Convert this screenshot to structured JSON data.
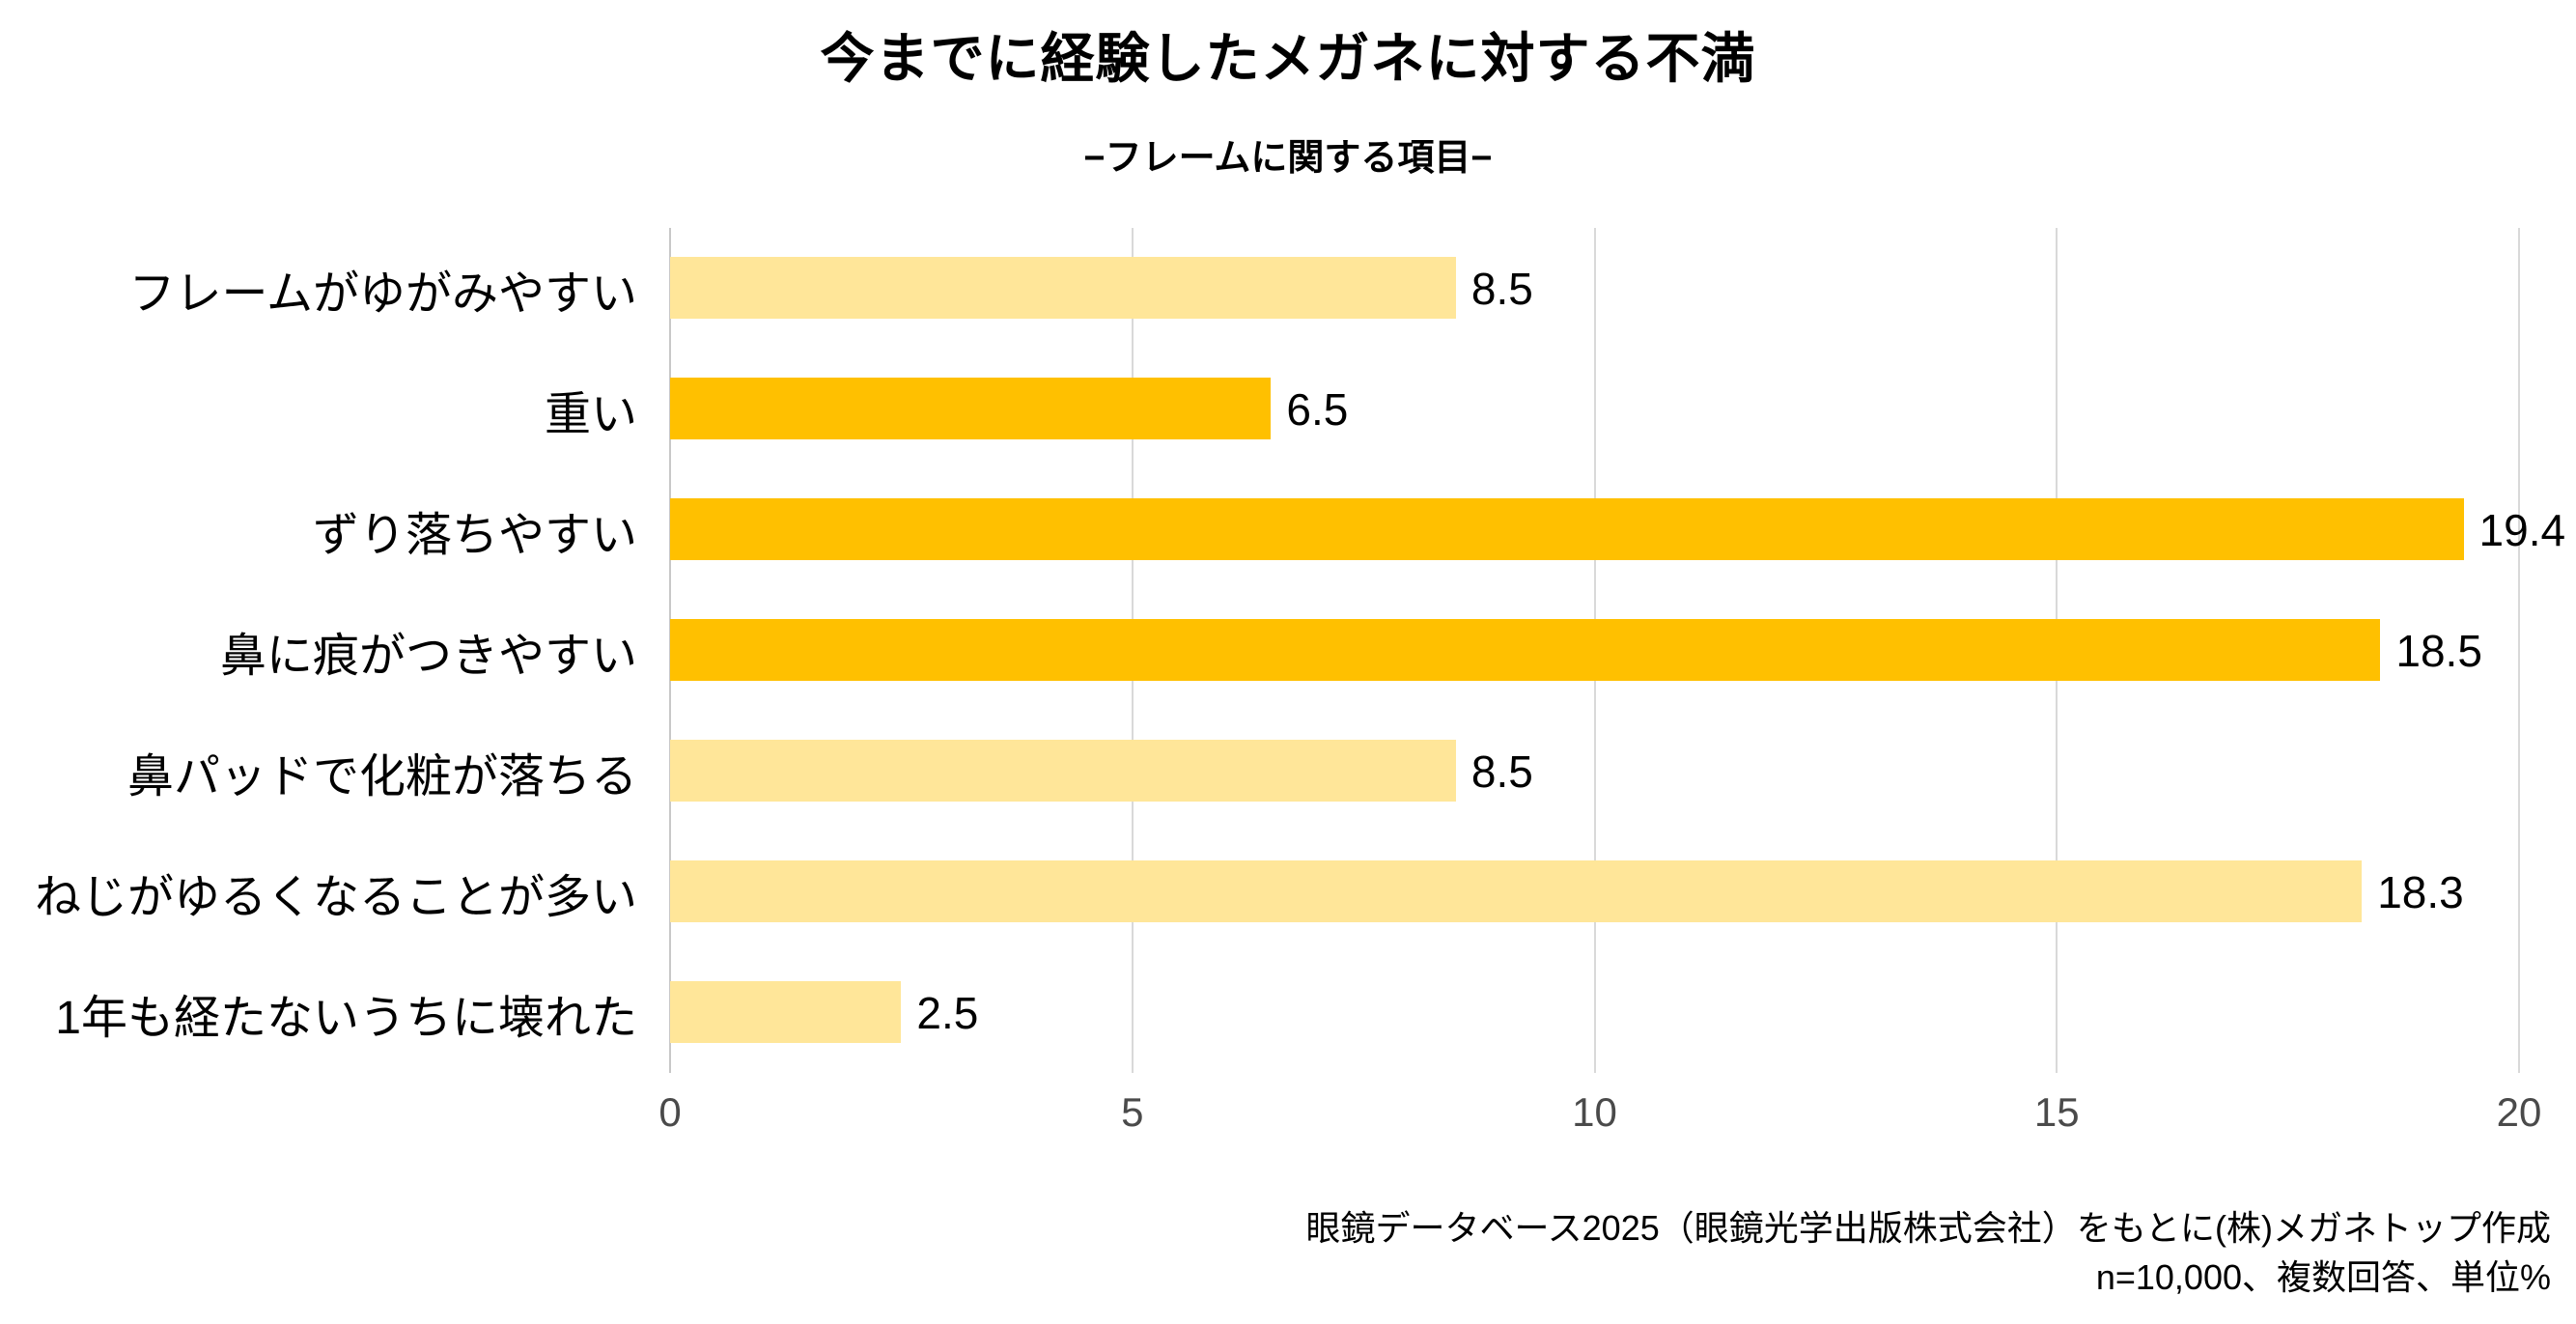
{
  "header": {
    "title": "今までに経験したメガネに対する不満",
    "subtitle": "−フレームに関する項目−"
  },
  "chart_data": {
    "type": "bar",
    "orientation": "horizontal",
    "title": "今までに経験したメガネに対する不満",
    "subtitle": "−フレームに関する項目−",
    "categories": [
      "フレームがゆがみやすい",
      "重い",
      "ずり落ちやすい",
      "鼻に痕がつきやすい",
      "鼻パッドで化粧が落ちる",
      "ねじがゆるくなることが多い",
      "1年も経たないうちに壊れた"
    ],
    "values": [
      8.5,
      6.5,
      19.4,
      18.5,
      8.5,
      18.3,
      2.5
    ],
    "value_labels": [
      "8.5",
      "6.5",
      "19.4",
      "18.5",
      "8.5",
      "18.3",
      "2.5"
    ],
    "bar_colors": [
      "#FFE699",
      "#FFC000",
      "#FFC000",
      "#FFC000",
      "#FFE699",
      "#FFE699",
      "#FFE699"
    ],
    "xlim": [
      0,
      20
    ],
    "xticks": [
      "0",
      "5",
      "10",
      "15",
      "20"
    ],
    "grid": "vertical-gridlines-only",
    "legend": "none",
    "unit": "%"
  },
  "footer": {
    "source_line": "眼鏡データベース2025（眼鏡光学出版株式会社）をもとに(株)メガネトップ作成",
    "note_line": "n=10,000、複数回答、単位%"
  },
  "colors": {
    "bar_light": "#FFE699",
    "bar_dark": "#FFC000",
    "gridline": "#D9D9D9",
    "axis_line": "#C8C8C8",
    "tick_text": "#4A4A4A",
    "text": "#000000",
    "background": "#FFFFFF"
  }
}
